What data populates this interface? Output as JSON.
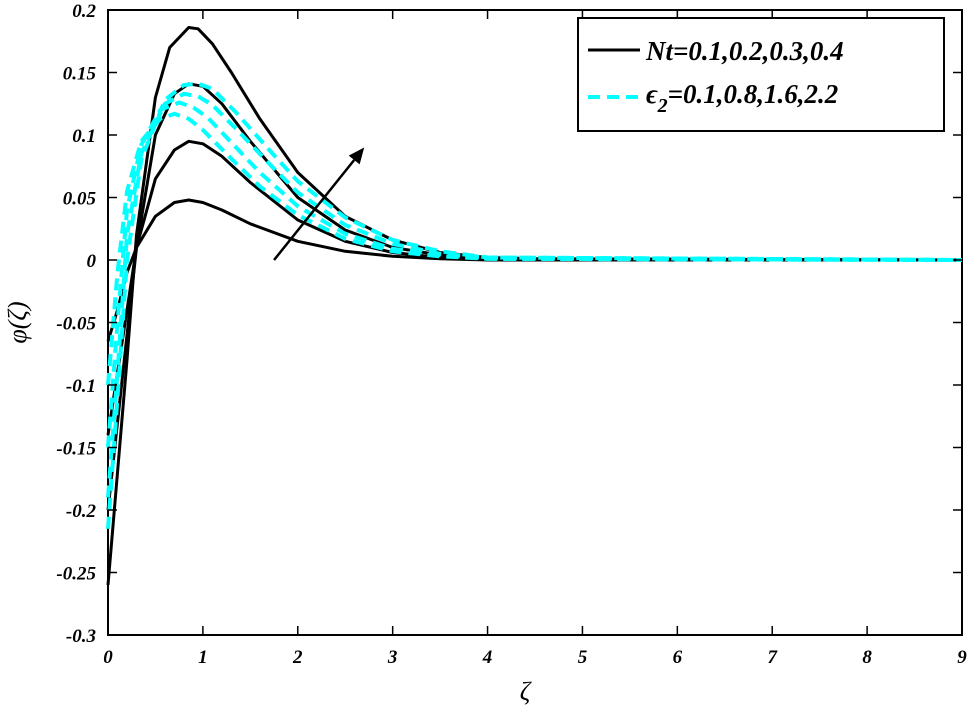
{
  "chart_data": {
    "type": "line",
    "xlabel": "ζ",
    "ylabel": "φ(ζ)",
    "xlim": [
      0,
      9
    ],
    "ylim": [
      -0.3,
      0.2
    ],
    "xticks": [
      0,
      1,
      2,
      3,
      4,
      5,
      6,
      7,
      8,
      9
    ],
    "yticks": [
      0.2,
      0.15,
      0.1,
      0.05,
      0,
      -0.05,
      -0.1,
      -0.15,
      -0.2,
      -0.25,
      -0.3
    ],
    "xtick_labels": [
      "0",
      "1",
      "2",
      "3",
      "4",
      "5",
      "6",
      "7",
      "8",
      "9"
    ],
    "ytick_labels": [
      "0.2",
      "0.15",
      "0.1",
      "0.05",
      "0",
      "-0.05",
      "-0.1",
      "-0.15",
      "-0.2",
      "-0.25",
      "-0.3"
    ],
    "grid": false,
    "legend": {
      "placement": "top-right",
      "entries": [
        {
          "label": "Nt=0.1,0.2,0.3,0.4",
          "style": "solid",
          "color": "#000000"
        },
        {
          "label_base": "ϵ",
          "label_sub": "2",
          "label_rest": "=0.1,0.8,1.6,2.2",
          "style": "dashed",
          "color": "#00ffff"
        }
      ]
    },
    "annotation": {
      "type": "arrow",
      "from": [
        1.75,
        0.0
      ],
      "to": [
        2.7,
        0.09
      ]
    },
    "series": [
      {
        "style": "solid",
        "color": "#000000",
        "points": [
          [
            0,
            -0.065
          ],
          [
            0.1,
            -0.04
          ],
          [
            0.2,
            -0.01
          ],
          [
            0.3,
            0.01
          ],
          [
            0.5,
            0.035
          ],
          [
            0.7,
            0.046
          ],
          [
            0.85,
            0.048
          ],
          [
            1.0,
            0.046
          ],
          [
            1.2,
            0.04
          ],
          [
            1.5,
            0.029
          ],
          [
            2,
            0.015
          ],
          [
            2.5,
            0.007
          ],
          [
            3,
            0.003
          ],
          [
            3.5,
            0.001
          ],
          [
            4,
            0
          ],
          [
            9,
            0
          ]
        ]
      },
      {
        "style": "solid",
        "color": "#000000",
        "points": [
          [
            0,
            -0.14
          ],
          [
            0.1,
            -0.09
          ],
          [
            0.2,
            -0.04
          ],
          [
            0.3,
            0.01
          ],
          [
            0.5,
            0.065
          ],
          [
            0.7,
            0.088
          ],
          [
            0.85,
            0.095
          ],
          [
            1.0,
            0.093
          ],
          [
            1.2,
            0.083
          ],
          [
            1.5,
            0.062
          ],
          [
            2,
            0.032
          ],
          [
            2.5,
            0.015
          ],
          [
            3,
            0.006
          ],
          [
            3.5,
            0.002
          ],
          [
            4,
            0.001
          ],
          [
            9,
            0
          ]
        ]
      },
      {
        "style": "solid",
        "color": "#000000",
        "points": [
          [
            0,
            -0.2
          ],
          [
            0.1,
            -0.13
          ],
          [
            0.2,
            -0.06
          ],
          [
            0.3,
            0.01
          ],
          [
            0.5,
            0.1
          ],
          [
            0.7,
            0.133
          ],
          [
            0.85,
            0.141
          ],
          [
            1.0,
            0.139
          ],
          [
            1.2,
            0.125
          ],
          [
            1.5,
            0.095
          ],
          [
            2,
            0.05
          ],
          [
            2.5,
            0.024
          ],
          [
            3,
            0.01
          ],
          [
            3.5,
            0.004
          ],
          [
            4,
            0.001
          ],
          [
            9,
            0
          ]
        ]
      },
      {
        "style": "solid",
        "color": "#000000",
        "points": [
          [
            0,
            -0.26
          ],
          [
            0.1,
            -0.17
          ],
          [
            0.2,
            -0.08
          ],
          [
            0.3,
            0.02
          ],
          [
            0.5,
            0.13
          ],
          [
            0.65,
            0.17
          ],
          [
            0.85,
            0.186
          ],
          [
            0.95,
            0.185
          ],
          [
            1.1,
            0.173
          ],
          [
            1.3,
            0.15
          ],
          [
            1.6,
            0.113
          ],
          [
            2,
            0.07
          ],
          [
            2.5,
            0.035
          ],
          [
            3,
            0.016
          ],
          [
            3.5,
            0.006
          ],
          [
            4,
            0.002
          ],
          [
            4.5,
            0.001
          ],
          [
            9,
            0
          ]
        ]
      },
      {
        "style": "dashed",
        "color": "#00ffff",
        "points": [
          [
            0,
            -0.1
          ],
          [
            0.1,
            -0.01
          ],
          [
            0.2,
            0.055
          ],
          [
            0.35,
            0.095
          ],
          [
            0.55,
            0.113
          ],
          [
            0.7,
            0.117
          ],
          [
            0.85,
            0.113
          ],
          [
            1.0,
            0.104
          ],
          [
            1.3,
            0.081
          ],
          [
            1.6,
            0.059
          ],
          [
            2,
            0.036
          ],
          [
            2.5,
            0.017
          ],
          [
            3,
            0.007
          ],
          [
            3.5,
            0.003
          ],
          [
            4,
            0.001
          ],
          [
            9,
            0
          ]
        ]
      },
      {
        "style": "dashed",
        "color": "#00ffff",
        "points": [
          [
            0,
            -0.15
          ],
          [
            0.1,
            -0.05
          ],
          [
            0.2,
            0.04
          ],
          [
            0.35,
            0.092
          ],
          [
            0.55,
            0.12
          ],
          [
            0.75,
            0.126
          ],
          [
            0.9,
            0.122
          ],
          [
            1.05,
            0.114
          ],
          [
            1.3,
            0.094
          ],
          [
            1.6,
            0.07
          ],
          [
            2,
            0.043
          ],
          [
            2.5,
            0.021
          ],
          [
            3,
            0.009
          ],
          [
            3.5,
            0.004
          ],
          [
            4,
            0.001
          ],
          [
            9,
            0
          ]
        ]
      },
      {
        "style": "dashed",
        "color": "#00ffff",
        "points": [
          [
            0,
            -0.19
          ],
          [
            0.1,
            -0.09
          ],
          [
            0.2,
            0.02
          ],
          [
            0.35,
            0.085
          ],
          [
            0.6,
            0.125
          ],
          [
            0.8,
            0.133
          ],
          [
            0.95,
            0.131
          ],
          [
            1.1,
            0.124
          ],
          [
            1.35,
            0.105
          ],
          [
            1.7,
            0.077
          ],
          [
            2,
            0.054
          ],
          [
            2.5,
            0.028
          ],
          [
            3,
            0.013
          ],
          [
            3.5,
            0.005
          ],
          [
            4,
            0.002
          ],
          [
            9,
            0
          ]
        ]
      },
      {
        "style": "dashed",
        "color": "#00ffff",
        "points": [
          [
            0,
            -0.215
          ],
          [
            0.1,
            -0.11
          ],
          [
            0.2,
            0.0
          ],
          [
            0.35,
            0.08
          ],
          [
            0.6,
            0.128
          ],
          [
            0.8,
            0.14
          ],
          [
            0.95,
            0.141
          ],
          [
            1.1,
            0.137
          ],
          [
            1.35,
            0.118
          ],
          [
            1.7,
            0.088
          ],
          [
            2,
            0.063
          ],
          [
            2.5,
            0.034
          ],
          [
            3,
            0.016
          ],
          [
            3.5,
            0.007
          ],
          [
            4,
            0.002
          ],
          [
            9,
            0
          ]
        ]
      }
    ]
  }
}
